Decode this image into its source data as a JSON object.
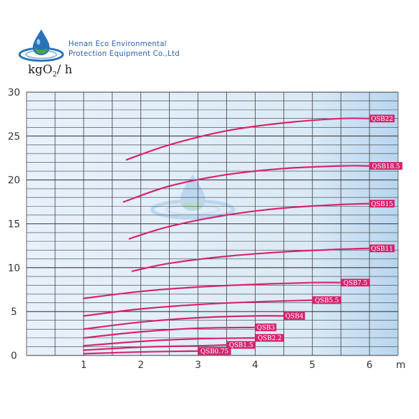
{
  "header": {
    "company_line1": "Henan Eco Environmental",
    "company_line2": "Protection Equipment Co.,Ltd",
    "unit_main": "kgO",
    "unit_sub": "2",
    "unit_tail": "/ h"
  },
  "colors": {
    "curve": "#d6246e",
    "grid": "#3a3a3a",
    "plot_bg": "#dbeaf6",
    "logo_blue": "#2a72b8",
    "logo_green": "#4aa83c"
  },
  "chart_data": {
    "type": "line",
    "xlabel": "m",
    "ylabel": "kgO2/h",
    "xlim": [
      0,
      6.5
    ],
    "ylim": [
      0,
      30
    ],
    "xticks": [
      1,
      2,
      3,
      4,
      5,
      6
    ],
    "yticks": [
      0,
      5,
      10,
      15,
      20,
      25,
      30
    ],
    "grid": true,
    "series": [
      {
        "name": "QSB22",
        "x": [
          1.75,
          2.5,
          3.5,
          4.5,
          5.5,
          6.0
        ],
        "y": [
          22.3,
          24.0,
          25.6,
          26.5,
          27.0,
          27.0
        ]
      },
      {
        "name": "QSB18.5",
        "x": [
          1.7,
          2.5,
          3.5,
          4.5,
          5.5,
          6.0
        ],
        "y": [
          17.5,
          19.3,
          20.6,
          21.3,
          21.6,
          21.6
        ]
      },
      {
        "name": "QSB15",
        "x": [
          1.8,
          2.5,
          3.5,
          4.5,
          5.5,
          6.0
        ],
        "y": [
          13.3,
          14.7,
          16.0,
          16.8,
          17.2,
          17.3
        ]
      },
      {
        "name": "QSB11",
        "x": [
          1.85,
          2.5,
          3.5,
          4.5,
          5.5,
          6.0
        ],
        "y": [
          9.6,
          10.5,
          11.3,
          11.8,
          12.1,
          12.2
        ]
      },
      {
        "name": "QSB7.5",
        "x": [
          1.0,
          2.0,
          3.0,
          4.0,
          5.0,
          5.5
        ],
        "y": [
          6.5,
          7.3,
          7.8,
          8.1,
          8.3,
          8.3
        ]
      },
      {
        "name": "QSB5.5",
        "x": [
          1.0,
          2.0,
          3.0,
          4.0,
          5.0
        ],
        "y": [
          4.5,
          5.3,
          5.8,
          6.1,
          6.3
        ]
      },
      {
        "name": "QSB4",
        "x": [
          1.0,
          2.0,
          3.0,
          4.0,
          4.5
        ],
        "y": [
          3.0,
          3.8,
          4.3,
          4.5,
          4.5
        ]
      },
      {
        "name": "QSB3",
        "x": [
          1.0,
          2.0,
          3.0,
          4.0
        ],
        "y": [
          2.0,
          2.7,
          3.1,
          3.2
        ]
      },
      {
        "name": "QSB2.2",
        "x": [
          1.0,
          2.0,
          3.0,
          4.0
        ],
        "y": [
          1.1,
          1.6,
          1.9,
          2.0
        ]
      },
      {
        "name": "QSB1.5",
        "x": [
          1.0,
          2.0,
          3.0,
          3.5
        ],
        "y": [
          0.6,
          0.95,
          1.1,
          1.2
        ]
      },
      {
        "name": "QSB0.75",
        "x": [
          1.0,
          2.0,
          3.0
        ],
        "y": [
          0.2,
          0.4,
          0.5
        ]
      }
    ]
  }
}
